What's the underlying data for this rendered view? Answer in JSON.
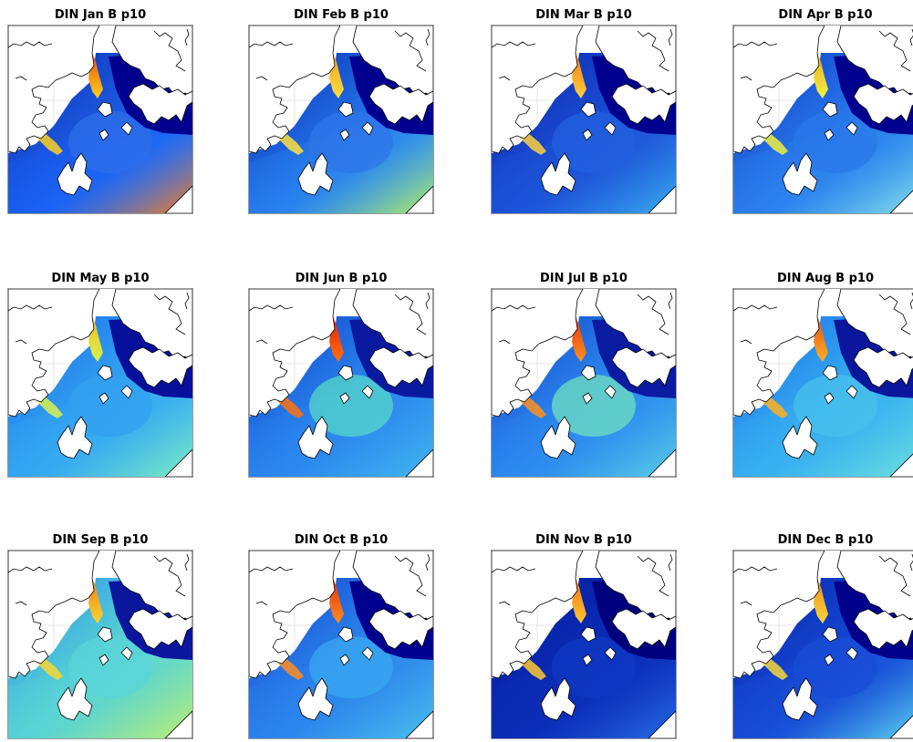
{
  "figure": {
    "panels": [
      {
        "title": "DIN Jan B p10",
        "month": "Jan",
        "colormap": "jet"
      },
      {
        "title": "DIN Feb B p10",
        "month": "Feb",
        "colormap": "jet"
      },
      {
        "title": "DIN Mar B p10",
        "month": "Mar",
        "colormap": "jet"
      },
      {
        "title": "DIN Apr B p10",
        "month": "Apr",
        "colormap": "jet"
      },
      {
        "title": "DIN May B p10",
        "month": "May",
        "colormap": "jet"
      },
      {
        "title": "DIN Jun B p10",
        "month": "Jun",
        "colormap": "jet"
      },
      {
        "title": "DIN Jul B p10",
        "month": "Jul",
        "colormap": "jet"
      },
      {
        "title": "DIN Aug B p10",
        "month": "Aug",
        "colormap": "jet"
      },
      {
        "title": "DIN Sep B p10",
        "month": "Sep",
        "colormap": "jet"
      },
      {
        "title": "DIN Oct B p10",
        "month": "Oct",
        "colormap": "jet"
      },
      {
        "title": "DIN Nov B p10",
        "month": "Nov",
        "colormap": "jet"
      },
      {
        "title": "DIN Dec B p10",
        "month": "Dec",
        "colormap": "jet"
      }
    ]
  }
}
